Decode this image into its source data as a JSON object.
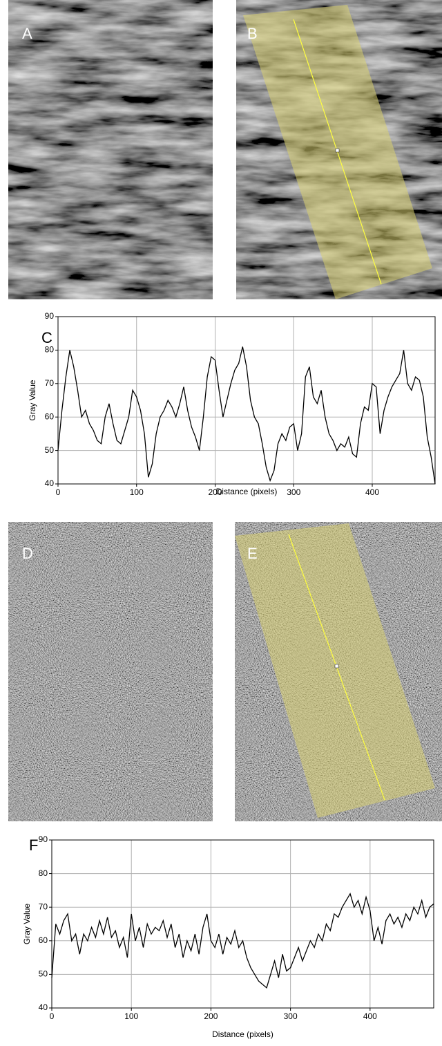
{
  "images": [
    {
      "label": "A"
    },
    {
      "label": "B"
    },
    {
      "label": "D"
    },
    {
      "label": "E"
    }
  ],
  "chart_data": [
    {
      "type": "line",
      "panel": "C",
      "x_label": "Distance (pixels)",
      "y_label": "Gray Value",
      "x": [
        0,
        5,
        10,
        15,
        20,
        25,
        30,
        35,
        40,
        45,
        50,
        55,
        60,
        65,
        70,
        75,
        80,
        85,
        90,
        95,
        100,
        105,
        110,
        115,
        120,
        125,
        130,
        135,
        140,
        145,
        150,
        155,
        160,
        165,
        170,
        175,
        180,
        185,
        190,
        195,
        200,
        205,
        210,
        215,
        220,
        225,
        230,
        235,
        240,
        245,
        250,
        255,
        260,
        265,
        270,
        275,
        280,
        285,
        290,
        295,
        300,
        305,
        310,
        315,
        320,
        325,
        330,
        335,
        340,
        345,
        350,
        355,
        360,
        365,
        370,
        375,
        380,
        385,
        390,
        395,
        400,
        405,
        410,
        415,
        420,
        425,
        430,
        435,
        440,
        445,
        450,
        455,
        460,
        465,
        470,
        475,
        480
      ],
      "series": [
        {
          "color": "#000000",
          "values": [
            50,
            62,
            72,
            80,
            75,
            68,
            60,
            62,
            58,
            56,
            53,
            52,
            60,
            64,
            58,
            53,
            52,
            56,
            60,
            68,
            66,
            62,
            55,
            42,
            46,
            55,
            60,
            62,
            65,
            63,
            60,
            64,
            69,
            62,
            57,
            54,
            50,
            60,
            72,
            78,
            77,
            68,
            60,
            65,
            70,
            74,
            76,
            81,
            75,
            65,
            60,
            58,
            52,
            45,
            41,
            44,
            52,
            55,
            53,
            57,
            58,
            50,
            55,
            72,
            75,
            66,
            64,
            68,
            60,
            55,
            53,
            50,
            52,
            51,
            54,
            49,
            48,
            58,
            63,
            62,
            70,
            69,
            55,
            62,
            66,
            69,
            71,
            73,
            80,
            70,
            68,
            72,
            71,
            66,
            54,
            48,
            40
          ]
        }
      ],
      "xlim": [
        0,
        480
      ],
      "ylim": [
        40,
        90
      ],
      "xticks": [
        0,
        100,
        200,
        300,
        400
      ],
      "yticks": [
        40,
        50,
        60,
        70,
        80,
        90
      ],
      "grid": true
    },
    {
      "type": "line",
      "panel": "F",
      "x_label": "Distance (pixels)",
      "y_label": "Gray Value",
      "x": [
        0,
        5,
        10,
        15,
        20,
        25,
        30,
        35,
        40,
        45,
        50,
        55,
        60,
        65,
        70,
        75,
        80,
        85,
        90,
        95,
        100,
        105,
        110,
        115,
        120,
        125,
        130,
        135,
        140,
        145,
        150,
        155,
        160,
        165,
        170,
        175,
        180,
        185,
        190,
        195,
        200,
        205,
        210,
        215,
        220,
        225,
        230,
        235,
        240,
        245,
        250,
        255,
        260,
        265,
        270,
        275,
        280,
        285,
        290,
        295,
        300,
        305,
        310,
        315,
        320,
        325,
        330,
        335,
        340,
        345,
        350,
        355,
        360,
        365,
        370,
        375,
        380,
        385,
        390,
        395,
        400,
        405,
        410,
        415,
        420,
        425,
        430,
        435,
        440,
        445,
        450,
        455,
        460,
        465,
        470,
        475,
        480
      ],
      "series": [
        {
          "color": "#000000",
          "values": [
            49,
            65,
            62,
            66,
            68,
            60,
            62,
            56,
            62,
            60,
            64,
            61,
            66,
            62,
            67,
            61,
            63,
            58,
            61,
            55,
            68,
            60,
            64,
            58,
            65,
            62,
            64,
            63,
            66,
            61,
            65,
            58,
            62,
            55,
            60,
            57,
            62,
            56,
            64,
            68,
            60,
            58,
            62,
            56,
            61,
            59,
            63,
            58,
            60,
            55,
            52,
            50,
            48,
            47,
            46,
            50,
            54,
            49,
            56,
            51,
            52,
            55,
            58,
            54,
            57,
            60,
            58,
            62,
            60,
            65,
            63,
            68,
            67,
            70,
            72,
            74,
            70,
            72,
            68,
            73,
            69,
            60,
            64,
            59,
            66,
            68,
            65,
            67,
            64,
            68,
            66,
            70,
            68,
            72,
            67,
            70,
            71
          ]
        }
      ],
      "xlim": [
        0,
        480
      ],
      "ylim": [
        40,
        90
      ],
      "xticks": [
        0,
        100,
        200,
        300,
        400
      ],
      "yticks": [
        40,
        50,
        60,
        70,
        80,
        90
      ],
      "grid": true
    }
  ]
}
